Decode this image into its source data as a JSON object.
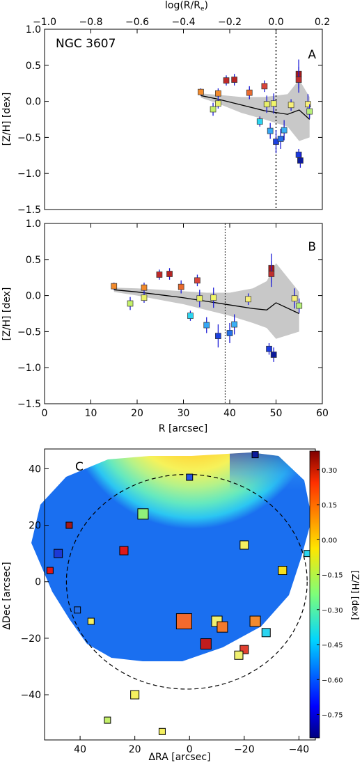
{
  "panel_a": {
    "galaxy_label": "NGC 3607",
    "panel_letter": "A",
    "top_axis_label": "log(R/R",
    "top_axis_label_sub": "e",
    "top_axis_label_end": ")",
    "top_ticks": [
      "−1.0",
      "−0.8",
      "−0.6",
      "−0.4",
      "−0.2",
      "0.0",
      "0.2"
    ],
    "ylabel": "[Z/H] [dex]",
    "yticks": [
      "1.0",
      "0.5",
      "0.0",
      "−0.5",
      "−1.0",
      "−1.5"
    ]
  },
  "panel_b": {
    "panel_letter": "B",
    "ylabel": "[Z/H] [dex]",
    "xlabel": "R [arcsec]",
    "xticks": [
      "0",
      "10",
      "20",
      "30",
      "40",
      "50",
      "60"
    ],
    "yticks": [
      "1.0",
      "0.5",
      "0.0",
      "−0.5",
      "−1.0",
      "−1.5"
    ]
  },
  "panel_c": {
    "panel_letter": "C",
    "xlabel": "ΔRA [arcsec]",
    "ylabel": "ΔDec [arcsec]",
    "xticks": [
      "40",
      "20",
      "0",
      "−20",
      "−40"
    ],
    "yticks": [
      "40",
      "20",
      "0",
      "−20",
      "−40"
    ],
    "colorbar_label": "[Z/H] [dex]",
    "colorbar_ticks": [
      "0.30",
      "0.15",
      "0.00",
      "−0.15",
      "−0.30",
      "−0.45",
      "−0.60",
      "−0.75"
    ]
  },
  "chart_data": [
    {
      "type": "scatter",
      "panel": "A",
      "xlabel": "log(R/Re)",
      "ylabel": "[Z/H] [dex]",
      "xlim": [
        -1.0,
        0.2
      ],
      "ylim": [
        -1.5,
        1.0
      ],
      "reference_line_x": 0.0,
      "points": [
        {
          "x": -0.325,
          "y": 0.13,
          "err": 0.05
        },
        {
          "x": -0.272,
          "y": -0.11,
          "err": 0.09
        },
        {
          "x": -0.25,
          "y": 0.11,
          "err": 0.07
        },
        {
          "x": -0.25,
          "y": -0.03,
          "err": 0.07
        },
        {
          "x": -0.215,
          "y": 0.29,
          "err": 0.07
        },
        {
          "x": -0.18,
          "y": 0.3,
          "err": 0.08
        },
        {
          "x": -0.115,
          "y": 0.12,
          "err": 0.09
        },
        {
          "x": -0.07,
          "y": -0.28,
          "err": 0.07
        },
        {
          "x": -0.05,
          "y": 0.21,
          "err": 0.08
        },
        {
          "x": -0.04,
          "y": -0.04,
          "err": 0.12
        },
        {
          "x": -0.025,
          "y": -0.41,
          "err": 0.11
        },
        {
          "x": -0.01,
          "y": -0.03,
          "err": 0.14
        },
        {
          "x": 0.0,
          "y": -0.56,
          "err": 0.16
        },
        {
          "x": 0.02,
          "y": -0.52,
          "err": 0.14
        },
        {
          "x": 0.035,
          "y": -0.4,
          "err": 0.14
        },
        {
          "x": 0.065,
          "y": -0.05,
          "err": 0.08
        },
        {
          "x": 0.098,
          "y": 0.38,
          "err": 0.2
        },
        {
          "x": 0.098,
          "y": 0.3,
          "err": 0.18
        },
        {
          "x": 0.098,
          "y": -0.74,
          "err": 0.08
        },
        {
          "x": 0.105,
          "y": -0.82,
          "err": 0.1
        },
        {
          "x": 0.138,
          "y": -0.04,
          "err": 0.14
        },
        {
          "x": 0.145,
          "y": -0.14,
          "err": 0.1
        }
      ],
      "colors": [
        "#f28a2b",
        "#c4f06a",
        "#f28a2b",
        "#e9f06a",
        "#bd2a2a",
        "#b52424",
        "#e96a2e",
        "#2bd4f0",
        "#d8453b",
        "#e9f06a",
        "#35a7f5",
        "#f0f56a",
        "#1c40e0",
        "#246fe8",
        "#3ab0f5",
        "#f8f07a",
        "#a51818",
        "#c02d2d",
        "#1a3ae0",
        "#0c1a9a",
        "#f8f07a",
        "#b8f07a"
      ],
      "model_x": [
        -0.325,
        -0.25,
        -0.15,
        -0.05,
        0.05,
        0.1,
        0.145
      ],
      "model_y": [
        0.08,
        0.03,
        -0.05,
        -0.13,
        -0.18,
        -0.12,
        -0.25
      ],
      "band_upper": [
        0.11,
        0.09,
        0.06,
        0.06,
        0.1,
        0.3,
        0.06
      ],
      "band_lower": [
        0.05,
        -0.03,
        -0.16,
        -0.25,
        -0.35,
        -0.55,
        -0.5
      ]
    },
    {
      "type": "scatter",
      "panel": "B",
      "xlabel": "R [arcsec]",
      "ylabel": "[Z/H] [dex]",
      "xlim": [
        0,
        60
      ],
      "ylim": [
        -1.5,
        1.0
      ],
      "reference_line_x": 39,
      "points": [
        {
          "x": 15.0,
          "y": 0.13,
          "err": 0.05
        },
        {
          "x": 18.5,
          "y": -0.11,
          "err": 0.09
        },
        {
          "x": 21.5,
          "y": 0.11,
          "err": 0.07
        },
        {
          "x": 21.5,
          "y": -0.03,
          "err": 0.07
        },
        {
          "x": 24.8,
          "y": 0.29,
          "err": 0.07
        },
        {
          "x": 27.0,
          "y": 0.3,
          "err": 0.08
        },
        {
          "x": 29.5,
          "y": 0.12,
          "err": 0.09
        },
        {
          "x": 31.5,
          "y": -0.28,
          "err": 0.07
        },
        {
          "x": 33.0,
          "y": 0.21,
          "err": 0.08
        },
        {
          "x": 33.5,
          "y": -0.04,
          "err": 0.12
        },
        {
          "x": 35.0,
          "y": -0.41,
          "err": 0.11
        },
        {
          "x": 36.5,
          "y": -0.03,
          "err": 0.14
        },
        {
          "x": 37.5,
          "y": -0.56,
          "err": 0.16
        },
        {
          "x": 40.0,
          "y": -0.52,
          "err": 0.14
        },
        {
          "x": 41.0,
          "y": -0.4,
          "err": 0.14
        },
        {
          "x": 44.0,
          "y": -0.05,
          "err": 0.08
        },
        {
          "x": 49.0,
          "y": 0.38,
          "err": 0.2
        },
        {
          "x": 49.0,
          "y": 0.3,
          "err": 0.18
        },
        {
          "x": 48.5,
          "y": -0.74,
          "err": 0.08
        },
        {
          "x": 49.5,
          "y": -0.82,
          "err": 0.1
        },
        {
          "x": 54.0,
          "y": -0.04,
          "err": 0.14
        },
        {
          "x": 55.0,
          "y": -0.14,
          "err": 0.1
        }
      ],
      "colors": [
        "#f28a2b",
        "#c4f06a",
        "#f28a2b",
        "#e9f06a",
        "#bd2a2a",
        "#b52424",
        "#e96a2e",
        "#2bd4f0",
        "#d8453b",
        "#e9f06a",
        "#35a7f5",
        "#f0f56a",
        "#1c40e0",
        "#246fe8",
        "#3ab0f5",
        "#f8f07a",
        "#a51818",
        "#c02d2d",
        "#1a3ae0",
        "#0c1a9a",
        "#f8f07a",
        "#b8f07a"
      ],
      "model_x": [
        15,
        20,
        25,
        30,
        35,
        40,
        45,
        48,
        50,
        55
      ],
      "model_y": [
        0.08,
        0.05,
        0.01,
        -0.03,
        -0.08,
        -0.13,
        -0.18,
        -0.2,
        -0.1,
        -0.25
      ],
      "band_upper": [
        0.11,
        0.1,
        0.08,
        0.06,
        0.04,
        0.04,
        0.1,
        0.2,
        0.45,
        0.05
      ],
      "band_lower": [
        0.05,
        0.0,
        -0.06,
        -0.12,
        -0.2,
        -0.28,
        -0.38,
        -0.45,
        -0.6,
        -0.5
      ]
    },
    {
      "type": "scatter",
      "panel": "C",
      "subtype": "2d-map",
      "xlabel": "ΔRA [arcsec]",
      "ylabel": "ΔDec [arcsec]",
      "xlim": [
        53,
        -46
      ],
      "ylim": [
        -56,
        47
      ],
      "colorbar_range": [
        -0.85,
        0.38
      ],
      "reference_ellipse": {
        "cx": 1,
        "cy": 0,
        "a": 44,
        "b": 38
      },
      "points": [
        {
          "x": 2,
          "y": -14,
          "size": "large",
          "color": "#f26a2d"
        },
        {
          "x": -6,
          "y": -22,
          "size": "medium",
          "color": "#c21d1d"
        },
        {
          "x": -10,
          "y": -14,
          "size": "medium",
          "color": "#f0f070"
        },
        {
          "x": -12,
          "y": -16,
          "size": "medium",
          "color": "#f27a2d"
        },
        {
          "x": -20,
          "y": -24,
          "size": "small",
          "color": "#e04030"
        },
        {
          "x": -18,
          "y": -26,
          "size": "small",
          "color": "#f0f070"
        },
        {
          "x": -24,
          "y": -14,
          "size": "medium",
          "color": "#f28a2d"
        },
        {
          "x": -28,
          "y": -18,
          "size": "small",
          "color": "#2bd4f0"
        },
        {
          "x": -34,
          "y": 4,
          "size": "small",
          "color": "#f5e020"
        },
        {
          "x": -20,
          "y": 13,
          "size": "small",
          "color": "#f5f060"
        },
        {
          "x": -24,
          "y": 45,
          "size": "tiny",
          "color": "#0c1a9a"
        },
        {
          "x": -43,
          "y": 10,
          "size": "tiny",
          "color": "#2bd4f0"
        },
        {
          "x": 0,
          "y": 37,
          "size": "tiny",
          "color": "#2555e5"
        },
        {
          "x": 17,
          "y": 24,
          "size": "medium",
          "color": "#90f07a"
        },
        {
          "x": 24,
          "y": 11,
          "size": "small",
          "color": "#e01818"
        },
        {
          "x": 44,
          "y": 20,
          "size": "tiny",
          "color": "#a51818"
        },
        {
          "x": 48,
          "y": 10,
          "size": "small",
          "color": "#1c3ad6"
        },
        {
          "x": 51,
          "y": 4,
          "size": "tiny",
          "color": "#e01818"
        },
        {
          "x": 41,
          "y": -10,
          "size": "tiny",
          "color": "#2570e8"
        },
        {
          "x": 36,
          "y": -14,
          "size": "tiny",
          "color": "#f5f060"
        },
        {
          "x": 20,
          "y": -40,
          "size": "small",
          "color": "#f5f060"
        },
        {
          "x": 30,
          "y": -49,
          "size": "tiny",
          "color": "#c4f06a"
        },
        {
          "x": 10,
          "y": -53,
          "size": "tiny",
          "color": "#f5f060"
        }
      ]
    }
  ]
}
